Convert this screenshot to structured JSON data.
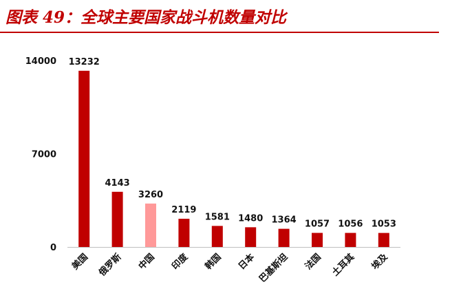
{
  "title": "图表 49：全球主要国家战斗机数量对比",
  "chart_data": {
    "type": "bar",
    "title": "图表 49：全球主要国家战斗机数量对比",
    "xlabel": "",
    "ylabel": "",
    "ylim": [
      0,
      14000
    ],
    "yticks": [
      0,
      7000,
      14000
    ],
    "grid": false,
    "categories": [
      "美国",
      "俄罗斯",
      "中国",
      "印度",
      "韩国",
      "日本",
      "巴基斯坦",
      "法国",
      "土耳其",
      "埃及"
    ],
    "values": [
      13232,
      4143,
      3260,
      2119,
      1581,
      1480,
      1364,
      1057,
      1056,
      1053
    ],
    "bar_color": "#c00000",
    "highlight_index": 2,
    "highlight_color": "#ff9999"
  }
}
